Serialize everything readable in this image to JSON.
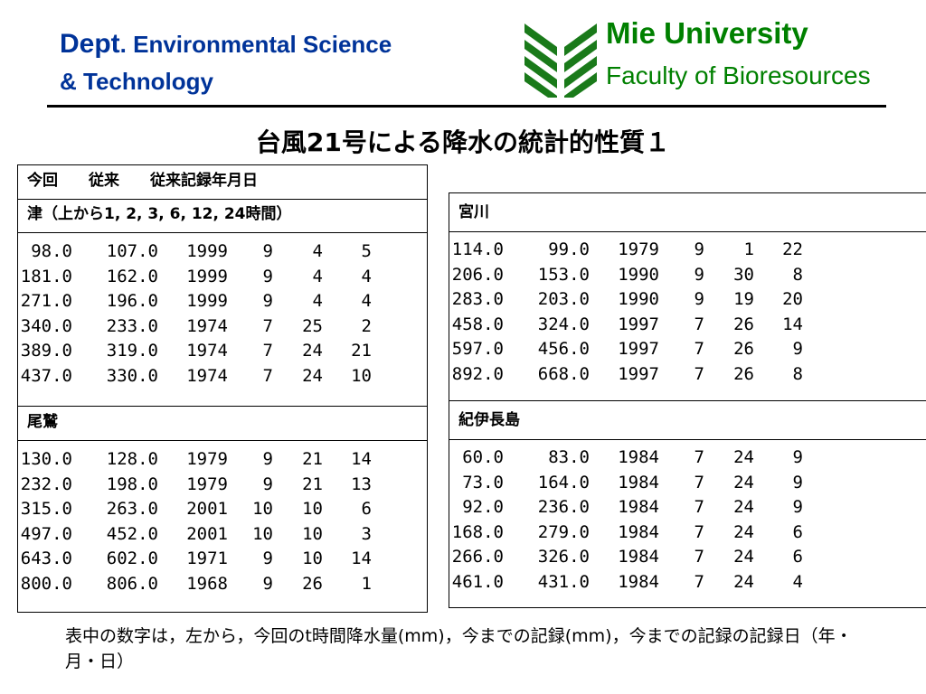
{
  "header": {
    "dept_line1_a": "Dept",
    "dept_line1_b": ". Environmental Science",
    "dept_line2": "& Technology",
    "university": "Mie University",
    "faculty": "Faculty of Bioresources",
    "colors": {
      "dept": "#003399",
      "university": "#008000",
      "logo": "#1a7a1a"
    },
    "logo_icon": "university-leaf-logo"
  },
  "title": "台風21号による降水の統計的性質１",
  "left_table": {
    "column_header": "今回　　従来　　従来記録年月日",
    "sections": [
      {
        "label": "津（上から1, 2, 3, 6, 12, 24時間）",
        "rows": [
          [
            "98.0",
            "107.0",
            "1999",
            "9",
            "4",
            "5"
          ],
          [
            "181.0",
            "162.0",
            "1999",
            "9",
            "4",
            "4"
          ],
          [
            "271.0",
            "196.0",
            "1999",
            "9",
            "4",
            "4"
          ],
          [
            "340.0",
            "233.0",
            "1974",
            "7",
            "25",
            "2"
          ],
          [
            "389.0",
            "319.0",
            "1974",
            "7",
            "24",
            "21"
          ],
          [
            "437.0",
            "330.0",
            "1974",
            "7",
            "24",
            "10"
          ]
        ]
      },
      {
        "label": "尾鷲",
        "rows": [
          [
            "130.0",
            "128.0",
            "1979",
            "9",
            "21",
            "14"
          ],
          [
            "232.0",
            "198.0",
            "1979",
            "9",
            "21",
            "13"
          ],
          [
            "315.0",
            "263.0",
            "2001",
            "10",
            "10",
            "6"
          ],
          [
            "497.0",
            "452.0",
            "2001",
            "10",
            "10",
            "3"
          ],
          [
            "643.0",
            "602.0",
            "1971",
            "9",
            "10",
            "14"
          ],
          [
            "800.0",
            "806.0",
            "1968",
            "9",
            "26",
            "1"
          ]
        ]
      }
    ]
  },
  "right_table": {
    "sections": [
      {
        "label": "宮川",
        "rows": [
          [
            "114.0",
            "99.0",
            "1979",
            "9",
            "1",
            "22"
          ],
          [
            "206.0",
            "153.0",
            "1990",
            "9",
            "30",
            "8"
          ],
          [
            "283.0",
            "203.0",
            "1990",
            "9",
            "19",
            "20"
          ],
          [
            "458.0",
            "324.0",
            "1997",
            "7",
            "26",
            "14"
          ],
          [
            "597.0",
            "456.0",
            "1997",
            "7",
            "26",
            "9"
          ],
          [
            "892.0",
            "668.0",
            "1997",
            "7",
            "26",
            "8"
          ]
        ]
      },
      {
        "label": "紀伊長島",
        "rows": [
          [
            "60.0",
            "83.0",
            "1984",
            "7",
            "24",
            "9"
          ],
          [
            "73.0",
            "164.0",
            "1984",
            "7",
            "24",
            "9"
          ],
          [
            "92.0",
            "236.0",
            "1984",
            "7",
            "24",
            "9"
          ],
          [
            "168.0",
            "279.0",
            "1984",
            "7",
            "24",
            "6"
          ],
          [
            "266.0",
            "326.0",
            "1984",
            "7",
            "24",
            "6"
          ],
          [
            "461.0",
            "431.0",
            "1984",
            "7",
            "24",
            "4"
          ]
        ]
      }
    ]
  },
  "footnote": "表中の数字は，左から，今回のt時間降水量(mm)，今までの記録(mm)，今までの記録の記録日（年・月・日）"
}
